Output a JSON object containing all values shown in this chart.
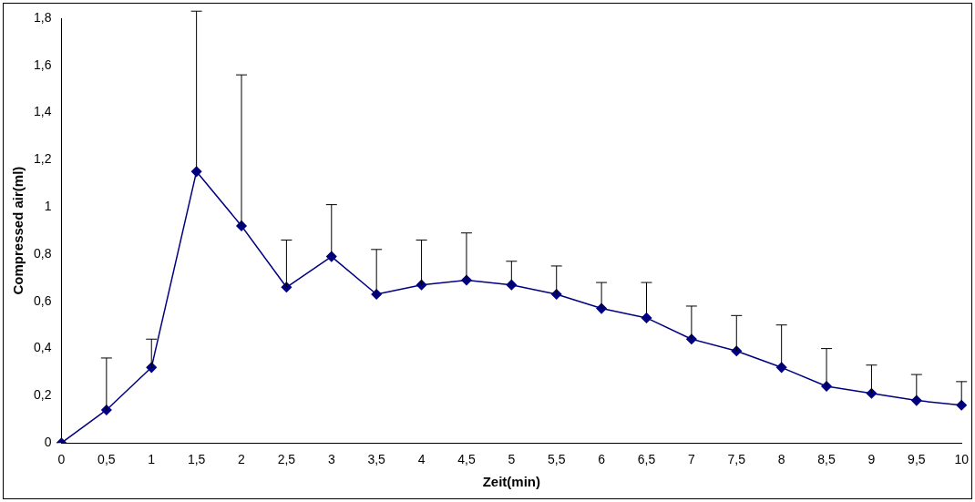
{
  "chart_data": {
    "type": "line",
    "xlabel": "Zeit(min)",
    "ylabel": "Compressed air(ml)",
    "categories": [
      "0",
      "0,5",
      "1",
      "1,5",
      "2",
      "2,5",
      "3",
      "3,5",
      "4",
      "4,5",
      "5",
      "5,5",
      "6",
      "6,5",
      "7",
      "7,5",
      "8",
      "8,5",
      "9",
      "9,5",
      "10"
    ],
    "series": [
      {
        "color": "#000080",
        "values": [
          0,
          0.14,
          0.32,
          1.15,
          0.92,
          0.66,
          0.79,
          0.63,
          0.67,
          0.69,
          0.67,
          0.63,
          0.57,
          0.53,
          0.44,
          0.39,
          0.32,
          0.24,
          0.21,
          0.18,
          0.16
        ],
        "errors": [
          null,
          [
            0.14,
            0.36
          ],
          [
            0.32,
            0.44
          ],
          [
            1.15,
            1.83
          ],
          [
            0.92,
            1.56
          ],
          [
            0.66,
            0.86
          ],
          [
            0.79,
            1.01
          ],
          [
            0.63,
            0.82
          ],
          [
            0.67,
            0.86
          ],
          [
            0.69,
            0.89
          ],
          [
            0.67,
            0.77
          ],
          [
            0.63,
            0.75
          ],
          [
            0.57,
            0.68
          ],
          [
            0.53,
            0.68
          ],
          [
            0.44,
            0.58
          ],
          [
            0.39,
            0.54
          ],
          [
            0.32,
            0.5
          ],
          [
            0.24,
            0.4
          ],
          [
            0.21,
            0.33
          ],
          [
            0.18,
            0.29
          ],
          [
            0.16,
            0.26
          ]
        ]
      }
    ],
    "ylim": [
      0,
      1.8
    ],
    "yticks": [
      0,
      {
        "value": 0.2,
        "label": "0,2"
      },
      {
        "value": 0.4,
        "label": "0,4"
      },
      {
        "value": 0.6,
        "label": "0,6"
      },
      {
        "value": 0.8,
        "label": "0,8"
      },
      1,
      {
        "value": 1.2,
        "label": "1,2"
      },
      {
        "value": 1.4,
        "label": "1,4"
      },
      {
        "value": 1.6,
        "label": "1,6"
      },
      {
        "value": 1.8,
        "label": "1,8"
      }
    ],
    "grid": false,
    "legend": false,
    "marker": "diamond",
    "line_style": "solid"
  }
}
